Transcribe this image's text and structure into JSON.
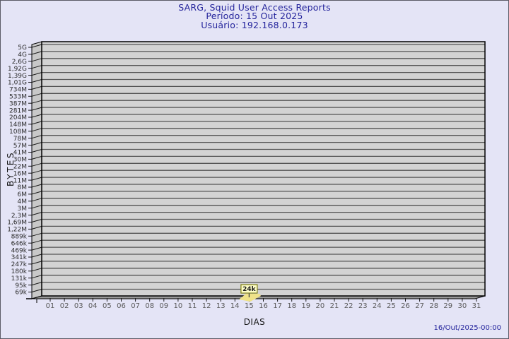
{
  "chart_data": {
    "type": "area",
    "style": "3d-gdchart",
    "title": "SARG, Squid User Access Reports",
    "subtitle_lines": [
      "Período: 15 Out 2025",
      "Usuário: 192.168.0.173"
    ],
    "xlabel": "DIAS",
    "ylabel": "BYTES",
    "x_ticks": [
      "01",
      "02",
      "03",
      "04",
      "05",
      "06",
      "07",
      "08",
      "09",
      "10",
      "11",
      "12",
      "13",
      "14",
      "15",
      "16",
      "17",
      "18",
      "19",
      "20",
      "21",
      "22",
      "23",
      "24",
      "25",
      "26",
      "27",
      "28",
      "29",
      "30",
      "31"
    ],
    "y_ticks_top_to_bottom": [
      "5G",
      "4G",
      "2,6G",
      "1,92G",
      "1,39G",
      "1,01G",
      "734M",
      "533M",
      "387M",
      "281M",
      "204M",
      "148M",
      "108M",
      "78M",
      "57M",
      "41M",
      "30M",
      "22M",
      "16M",
      "11M",
      "8M",
      "6M",
      "4M",
      "3M",
      "2,3M",
      "1,69M",
      "1,22M",
      "889k",
      "646k",
      "469k",
      "341k",
      "247k",
      "180k",
      "131k",
      "95k",
      "69k"
    ],
    "points": [
      {
        "x": "15",
        "label": "24k",
        "approx_bytes": 24000
      }
    ],
    "grid": "horizontal",
    "legend": "none",
    "colors": {
      "background": "#E4E4F6",
      "title_text": "#24249C",
      "plot_fill": "#D3D3D3",
      "grid_line": "#555555",
      "side_wall_fill": "#C8C8C8",
      "floor_fill": "#999999",
      "frame": "#000000",
      "axis_line": "#1a1a1a",
      "y_tick_text": "#2B2B2B",
      "x_tick_text": "#5A5A5A",
      "marker_fill": "#EFE289",
      "marker_label_bg": "#FFFFC9",
      "marker_label_border": "#7D7D10",
      "marker_label_text": "#1a1a1a"
    }
  },
  "footer": {
    "generated_at": "16/Out/2025-00:00"
  }
}
